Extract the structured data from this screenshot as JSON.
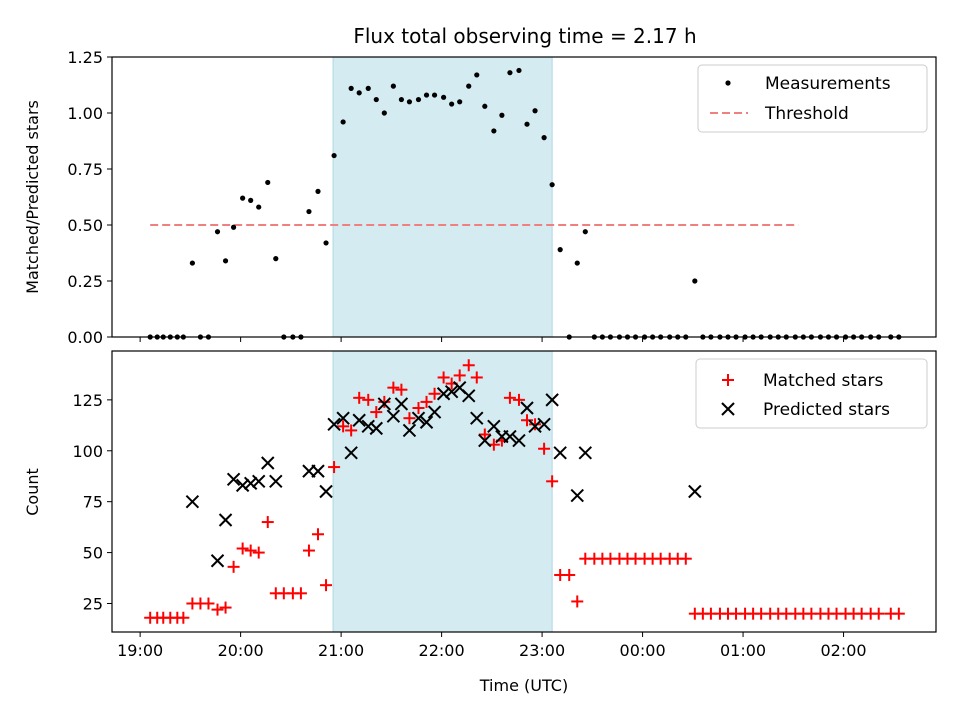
{
  "chart_data": [
    {
      "type": "scatter",
      "title": "Flux total observing time = 2.17 h",
      "xlabel": "",
      "ylabel": "Matched/Predicted stars",
      "ylim": [
        0,
        1.25
      ],
      "yticks": [
        0,
        0.25,
        0.5,
        0.75,
        1.0,
        1.25
      ],
      "ytick_labels": [
        "0.00",
        "0.25",
        "0.50",
        "0.75",
        "1.00",
        "1.25"
      ],
      "xlim": [
        18.72,
        26.92
      ],
      "xticks": [
        19,
        20,
        21,
        22,
        23,
        24,
        25,
        26
      ],
      "xtick_labels": [
        "",
        "",
        "",
        "",
        "",
        "",
        "",
        ""
      ],
      "highlight_span": [
        20.92,
        23.1
      ],
      "highlight_color": "#d3ebf1",
      "grid": false,
      "legend_position": "top-right",
      "legend": [
        "Measurements",
        "Threshold"
      ],
      "threshold": {
        "name": "Threshold",
        "value": 0.5,
        "x_range": [
          19.1,
          25.55
        ],
        "color": "#f08080"
      },
      "series": [
        {
          "name": "Measurements",
          "marker": "dot",
          "color": "#000000",
          "x": [
            19.1,
            19.17,
            19.23,
            19.3,
            19.37,
            19.43,
            19.52,
            19.6,
            19.68,
            19.77,
            19.85,
            19.93,
            20.02,
            20.1,
            20.18,
            20.27,
            20.35,
            20.43,
            20.52,
            20.6,
            20.68,
            20.77,
            20.85,
            20.93,
            21.02,
            21.1,
            21.18,
            21.27,
            21.35,
            21.43,
            21.52,
            21.6,
            21.68,
            21.77,
            21.85,
            21.93,
            22.02,
            22.1,
            22.18,
            22.27,
            22.35,
            22.43,
            22.52,
            22.6,
            22.68,
            22.77,
            22.85,
            22.93,
            23.02,
            23.1,
            23.18,
            23.27,
            23.35,
            23.43,
            23.52,
            23.6,
            23.68,
            23.77,
            23.85,
            23.93,
            24.02,
            24.1,
            24.18,
            24.27,
            24.35,
            24.43,
            24.52,
            24.6,
            24.68,
            24.77,
            24.85,
            24.93,
            25.02,
            25.1,
            25.18,
            25.27,
            25.35,
            25.43,
            25.52,
            25.6,
            25.68,
            25.77,
            25.85,
            25.93,
            26.02,
            26.1,
            26.18,
            26.27,
            26.35,
            26.47,
            26.55
          ],
          "y": [
            0,
            0,
            0,
            0,
            0,
            0,
            0.33,
            0,
            0,
            0.47,
            0.34,
            0.49,
            0.62,
            0.61,
            0.58,
            0.69,
            0.35,
            0,
            0,
            0,
            0.56,
            0.65,
            0.42,
            0.81,
            0.96,
            1.11,
            1.09,
            1.11,
            1.06,
            1.0,
            1.12,
            1.06,
            1.05,
            1.06,
            1.08,
            1.08,
            1.07,
            1.04,
            1.05,
            1.12,
            1.17,
            1.03,
            0.92,
            0.99,
            1.18,
            1.19,
            0.95,
            1.01,
            0.89,
            0.68,
            0.39,
            0,
            0.33,
            0.47,
            0,
            0,
            0,
            0,
            0,
            0,
            0,
            0,
            0,
            0,
            0,
            0,
            0.25,
            0,
            0,
            0,
            0,
            0,
            0,
            0,
            0,
            0,
            0,
            0,
            0,
            0,
            0,
            0,
            0,
            0,
            0,
            0,
            0,
            0,
            0,
            0,
            0
          ]
        }
      ]
    },
    {
      "type": "scatter",
      "title": "",
      "xlabel": "Time (UTC)",
      "ylabel": "Count",
      "ylim": [
        11,
        149
      ],
      "yticks": [
        25,
        50,
        75,
        100,
        125
      ],
      "ytick_labels": [
        "25",
        "50",
        "75",
        "100",
        "125"
      ],
      "xlim": [
        18.72,
        26.92
      ],
      "xticks": [
        19,
        20,
        21,
        22,
        23,
        24,
        25,
        26
      ],
      "xtick_labels": [
        "19:00",
        "20:00",
        "21:00",
        "22:00",
        "23:00",
        "00:00",
        "01:00",
        "02:00"
      ],
      "highlight_span": [
        20.92,
        23.1
      ],
      "highlight_color": "#d3ebf1",
      "grid": false,
      "legend_position": "top-right",
      "legend": [
        "Matched stars",
        "Predicted stars"
      ],
      "series": [
        {
          "name": "Matched stars",
          "marker": "plus",
          "color": "#ff0000",
          "x": [
            19.1,
            19.17,
            19.23,
            19.3,
            19.37,
            19.43,
            19.52,
            19.6,
            19.68,
            19.77,
            19.85,
            19.93,
            20.02,
            20.1,
            20.18,
            20.27,
            20.35,
            20.43,
            20.52,
            20.6,
            20.68,
            20.77,
            20.85,
            20.93,
            21.02,
            21.1,
            21.18,
            21.27,
            21.35,
            21.43,
            21.52,
            21.6,
            21.68,
            21.77,
            21.85,
            21.93,
            22.02,
            22.1,
            22.18,
            22.27,
            22.35,
            22.43,
            22.52,
            22.6,
            22.68,
            22.77,
            22.85,
            22.93,
            23.02,
            23.1,
            23.18,
            23.27,
            23.35,
            23.43,
            23.52,
            23.6,
            23.68,
            23.77,
            23.85,
            23.93,
            24.02,
            24.1,
            24.18,
            24.27,
            24.35,
            24.43,
            24.52,
            24.6,
            24.68,
            24.77,
            24.85,
            24.93,
            25.02,
            25.1,
            25.18,
            25.27,
            25.35,
            25.43,
            25.52,
            25.6,
            25.68,
            25.77,
            25.85,
            25.93,
            26.02,
            26.1,
            26.18,
            26.27,
            26.35,
            26.47,
            26.55
          ],
          "y": [
            18,
            18,
            18,
            18,
            18,
            18,
            25,
            25,
            25,
            22,
            23,
            43,
            52,
            51,
            50,
            65,
            30,
            30,
            30,
            30,
            51,
            59,
            34,
            92,
            112,
            110,
            126,
            125,
            119,
            124,
            131,
            130,
            116,
            121,
            124,
            128,
            136,
            133,
            137,
            142,
            136,
            108,
            103,
            105,
            126,
            125,
            115,
            113,
            101,
            85,
            39,
            39,
            26,
            47,
            47,
            47,
            47,
            47,
            47,
            47,
            47,
            47,
            47,
            47,
            47,
            47,
            20,
            20,
            20,
            20,
            20,
            20,
            20,
            20,
            20,
            20,
            20,
            20,
            20,
            20,
            20,
            20,
            20,
            20,
            20,
            20,
            20,
            20,
            20,
            20,
            20
          ]
        },
        {
          "name": "Predicted stars",
          "marker": "x",
          "color": "#000000",
          "x": [
            19.52,
            19.77,
            19.85,
            19.93,
            20.02,
            20.1,
            20.18,
            20.27,
            20.35,
            20.68,
            20.77,
            20.85,
            20.93,
            21.02,
            21.1,
            21.18,
            21.27,
            21.35,
            21.43,
            21.52,
            21.6,
            21.68,
            21.77,
            21.85,
            21.93,
            22.02,
            22.1,
            22.18,
            22.27,
            22.35,
            22.43,
            22.52,
            22.6,
            22.68,
            22.77,
            22.85,
            22.93,
            23.02,
            23.1,
            23.18,
            23.35,
            23.43,
            24.52
          ],
          "y": [
            75,
            46,
            66,
            86,
            83,
            84,
            85,
            94,
            85,
            90,
            90,
            80,
            113,
            116,
            99,
            115,
            112,
            111,
            123,
            117,
            123,
            110,
            116,
            114,
            119,
            128,
            129,
            131,
            127,
            116,
            105,
            112,
            107,
            107,
            105,
            121,
            112,
            113,
            125,
            99,
            78,
            99,
            80
          ]
        }
      ]
    }
  ]
}
